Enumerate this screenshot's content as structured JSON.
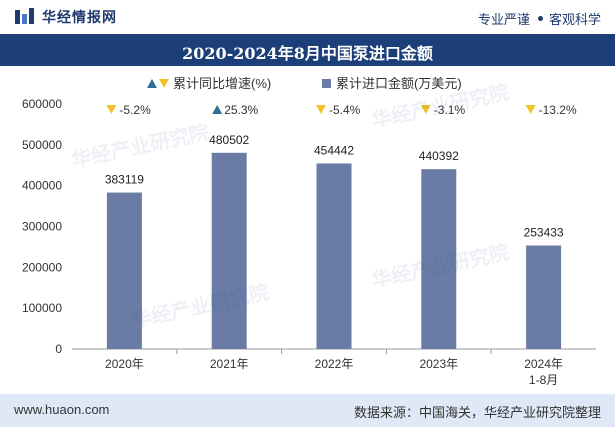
{
  "header": {
    "brand": "华经情报网",
    "slogan_left": "专业严谨",
    "slogan_right": "客观科学"
  },
  "watermark": "华经产业研究院",
  "footer": {
    "website": "www.huaon.com",
    "source": "数据来源：中国海关，华经产业研究院整理"
  },
  "colors": {
    "bar": "#6a7ca5",
    "title_bg": "#1c3f7a",
    "up_marker": "#2f6f8f",
    "down_marker": "#f4c12b"
  },
  "chart_data": {
    "type": "bar",
    "title": "2020-2024年8月中国泵进口金额",
    "categories": [
      [
        "2020年"
      ],
      [
        "2021年"
      ],
      [
        "2022年"
      ],
      [
        "2023年"
      ],
      [
        "2024年",
        "1-8月"
      ]
    ],
    "series": [
      {
        "name": "累计进口金额(万美元)",
        "values": [
          383119,
          480502,
          454442,
          440392,
          253433
        ]
      }
    ],
    "growth": {
      "name": "累计同比增速(%)",
      "labels": [
        "-5.2%",
        "25.3%",
        "-5.4%",
        "-3.1%",
        "-13.2%"
      ],
      "direction": [
        "down",
        "up",
        "down",
        "down",
        "down"
      ]
    },
    "legend_growth_name": "累计同比增速(%)",
    "legend_bar_name": "累计进口金额(万美元)",
    "yticks": [
      0,
      100000,
      200000,
      300000,
      400000,
      500000,
      600000
    ],
    "ylim": [
      0,
      600000
    ],
    "grid": false,
    "legend_position": "top"
  }
}
